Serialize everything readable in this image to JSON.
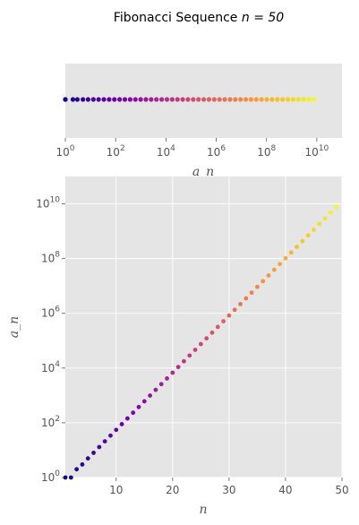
{
  "title": "Fibonacci Sequence",
  "title_math": "n = 50",
  "colors": {
    "panel_bg": "#e5e5e5",
    "grid": "#ffffff",
    "tick_text": "#555555",
    "label_text": "#555555",
    "title_text": "#000000"
  },
  "colormap": "plasma",
  "chart_data": [
    {
      "type": "scatter",
      "panel": "top",
      "description_axis": "strip plot of a_n values along a log x-axis",
      "xlabel": "a_n",
      "xscale": "log",
      "xlim": [
        1,
        100000000000.0
      ],
      "xticks": [
        1,
        100,
        10000,
        1000000,
        100000000,
        10000000000
      ],
      "xtick_labels": [
        "10^0",
        "10^2",
        "10^4",
        "10^6",
        "10^8",
        "10^10"
      ],
      "grid": false
    },
    {
      "type": "scatter",
      "panel": "main",
      "xlabel": "n",
      "ylabel": "a_n",
      "yscale": "log",
      "xlim": [
        1,
        50
      ],
      "ylim": [
        1,
        100000000000.0
      ],
      "xticks": [
        10,
        20,
        30,
        40,
        50
      ],
      "yticks": [
        1,
        100,
        10000,
        1000000,
        100000000,
        10000000000
      ],
      "ytick_labels": [
        "10^0",
        "10^2",
        "10^4",
        "10^6",
        "10^8",
        "10^10"
      ],
      "grid": true,
      "x": [
        1,
        2,
        3,
        4,
        5,
        6,
        7,
        8,
        9,
        10,
        11,
        12,
        13,
        14,
        15,
        16,
        17,
        18,
        19,
        20,
        21,
        22,
        23,
        24,
        25,
        26,
        27,
        28,
        29,
        30,
        31,
        32,
        33,
        34,
        35,
        36,
        37,
        38,
        39,
        40,
        41,
        42,
        43,
        44,
        45,
        46,
        47,
        48,
        49
      ],
      "values": [
        1,
        1,
        2,
        3,
        5,
        8,
        13,
        21,
        34,
        55,
        89,
        144,
        233,
        377,
        610,
        987,
        1597,
        2584,
        4181,
        6765,
        10946,
        17711,
        28657,
        46368,
        75025,
        121393,
        196418,
        317811,
        514229,
        832040,
        1346269,
        2178309,
        3524578,
        5702887,
        9227465,
        14930352,
        24157817,
        39088169,
        63245986,
        102334155,
        165580141,
        267914296,
        433494437,
        701408733,
        1134903170,
        1836311903,
        2971215073,
        4807526976,
        7778742049
      ]
    }
  ]
}
